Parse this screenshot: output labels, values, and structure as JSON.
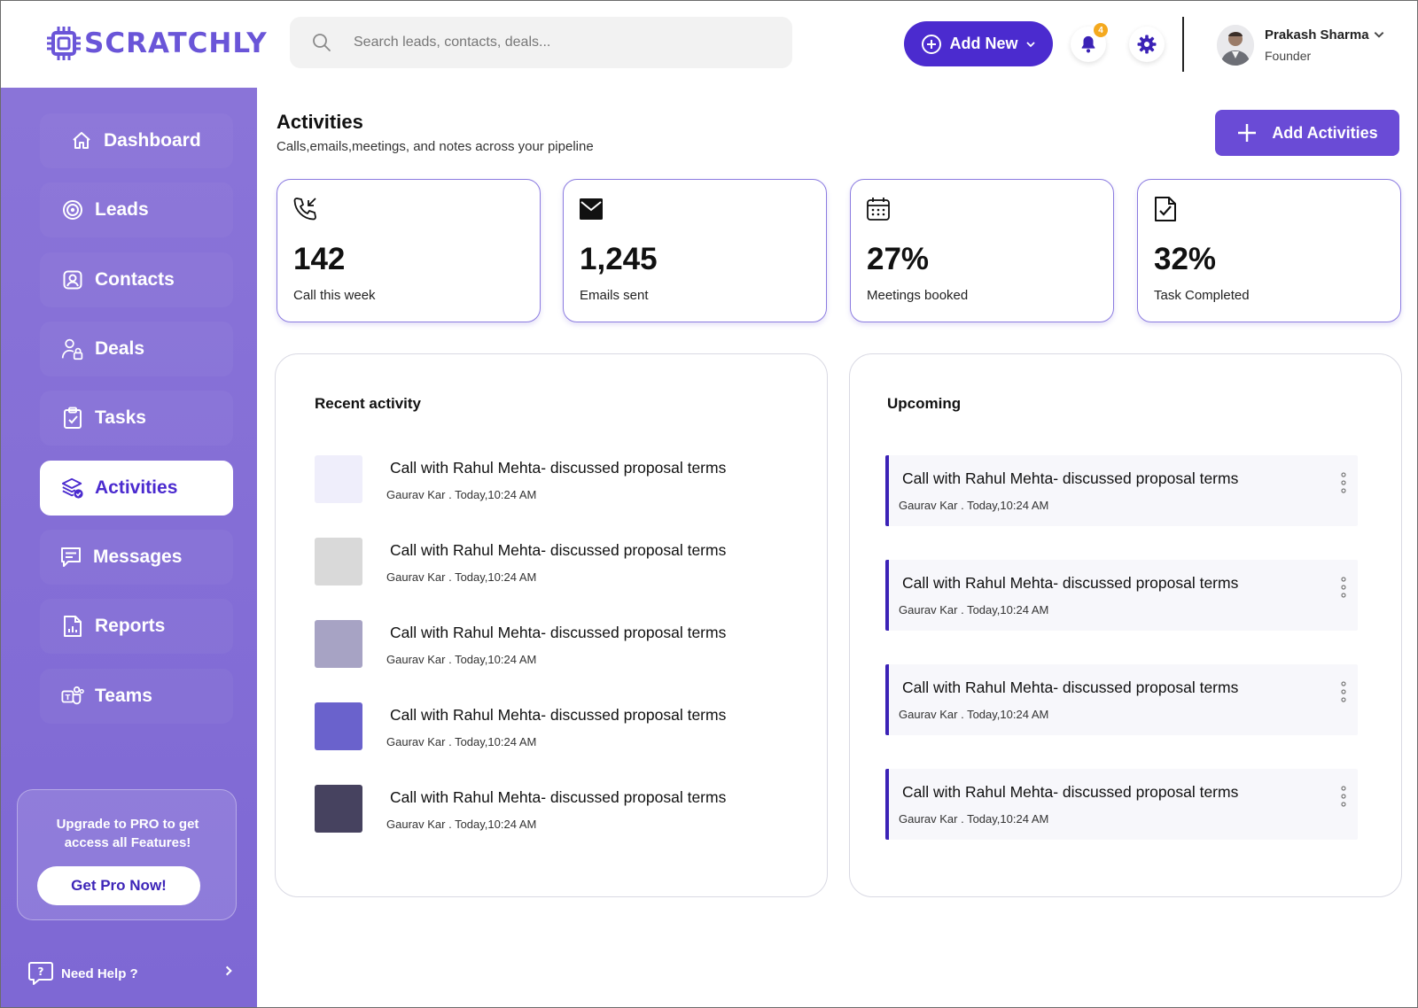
{
  "brand": {
    "name": "SCRATCHLY",
    "color": "#6a55d8"
  },
  "search": {
    "placeholder": "Search leads, contacts, deals..."
  },
  "header": {
    "add_new_label": "Add New",
    "notifications_count": "4",
    "user": {
      "name": "Prakash Sharma",
      "role": "Founder"
    }
  },
  "sidebar": {
    "items": [
      {
        "label": "Dashboard",
        "icon": "home-icon"
      },
      {
        "label": "Leads",
        "icon": "target-icon"
      },
      {
        "label": "Contacts",
        "icon": "contact-icon"
      },
      {
        "label": "Deals",
        "icon": "user-lock-icon"
      },
      {
        "label": "Tasks",
        "icon": "clipboard-check-icon"
      },
      {
        "label": "Activities",
        "icon": "layers-check-icon",
        "active": true
      },
      {
        "label": "Messages",
        "icon": "message-icon"
      },
      {
        "label": "Reports",
        "icon": "report-icon"
      },
      {
        "label": "Teams",
        "icon": "teams-icon"
      }
    ],
    "upgrade": {
      "text": "Upgrade to  PRO to get access all Features!",
      "button": "Get Pro Now!"
    },
    "help_label": "Need Help ?"
  },
  "page": {
    "title": "Activities",
    "subtitle": "Calls,emails,meetings, and notes across your pipeline",
    "add_button": "Add Activities"
  },
  "stats": [
    {
      "value": "142",
      "label": "Call this week",
      "icon": "phone-incoming-icon"
    },
    {
      "value": "1,245",
      "label": "Emails sent",
      "icon": "mail-icon"
    },
    {
      "value": "27%",
      "label": "Meetings booked",
      "icon": "calendar-icon"
    },
    {
      "value": "32%",
      "label": "Task Completed",
      "icon": "file-check-icon"
    }
  ],
  "recent": {
    "title": "Recent activity",
    "items": [
      {
        "title": "Call with Rahul Mehta- discussed proposal terms",
        "meta": "Gaurav Kar . Today,10:24 AM",
        "color": "#efeefb"
      },
      {
        "title": "Call with Rahul Mehta- discussed proposal terms",
        "meta": "Gaurav Kar . Today,10:24 AM",
        "color": "#d9d9d9"
      },
      {
        "title": "Call with Rahul Mehta- discussed proposal terms",
        "meta": "Gaurav Kar . Today,10:24 AM",
        "color": "#a7a3c4"
      },
      {
        "title": "Call with Rahul Mehta- discussed proposal terms",
        "meta": "Gaurav Kar . Today,10:24 AM",
        "color": "#6a62cc"
      },
      {
        "title": "Call with Rahul Mehta- discussed proposal terms",
        "meta": "Gaurav Kar . Today,10:24 AM",
        "color": "#46425f"
      }
    ]
  },
  "upcoming": {
    "title": "Upcoming",
    "items": [
      {
        "title": "Call with Rahul Mehta- discussed proposal terms",
        "meta": "Gaurav Kar . Today,10:24 AM"
      },
      {
        "title": "Call with Rahul Mehta- discussed proposal terms",
        "meta": "Gaurav Kar . Today,10:24 AM"
      },
      {
        "title": "Call with Rahul Mehta- discussed proposal terms",
        "meta": "Gaurav Kar . Today,10:24 AM"
      },
      {
        "title": "Call with Rahul Mehta- discussed proposal terms",
        "meta": "Gaurav Kar . Today,10:24 AM"
      }
    ]
  },
  "colors": {
    "primary": "#4b2bcf",
    "sidebar": "#8a74d8",
    "accent_badge": "#f4a91f",
    "card_border": "#8b7be0"
  }
}
